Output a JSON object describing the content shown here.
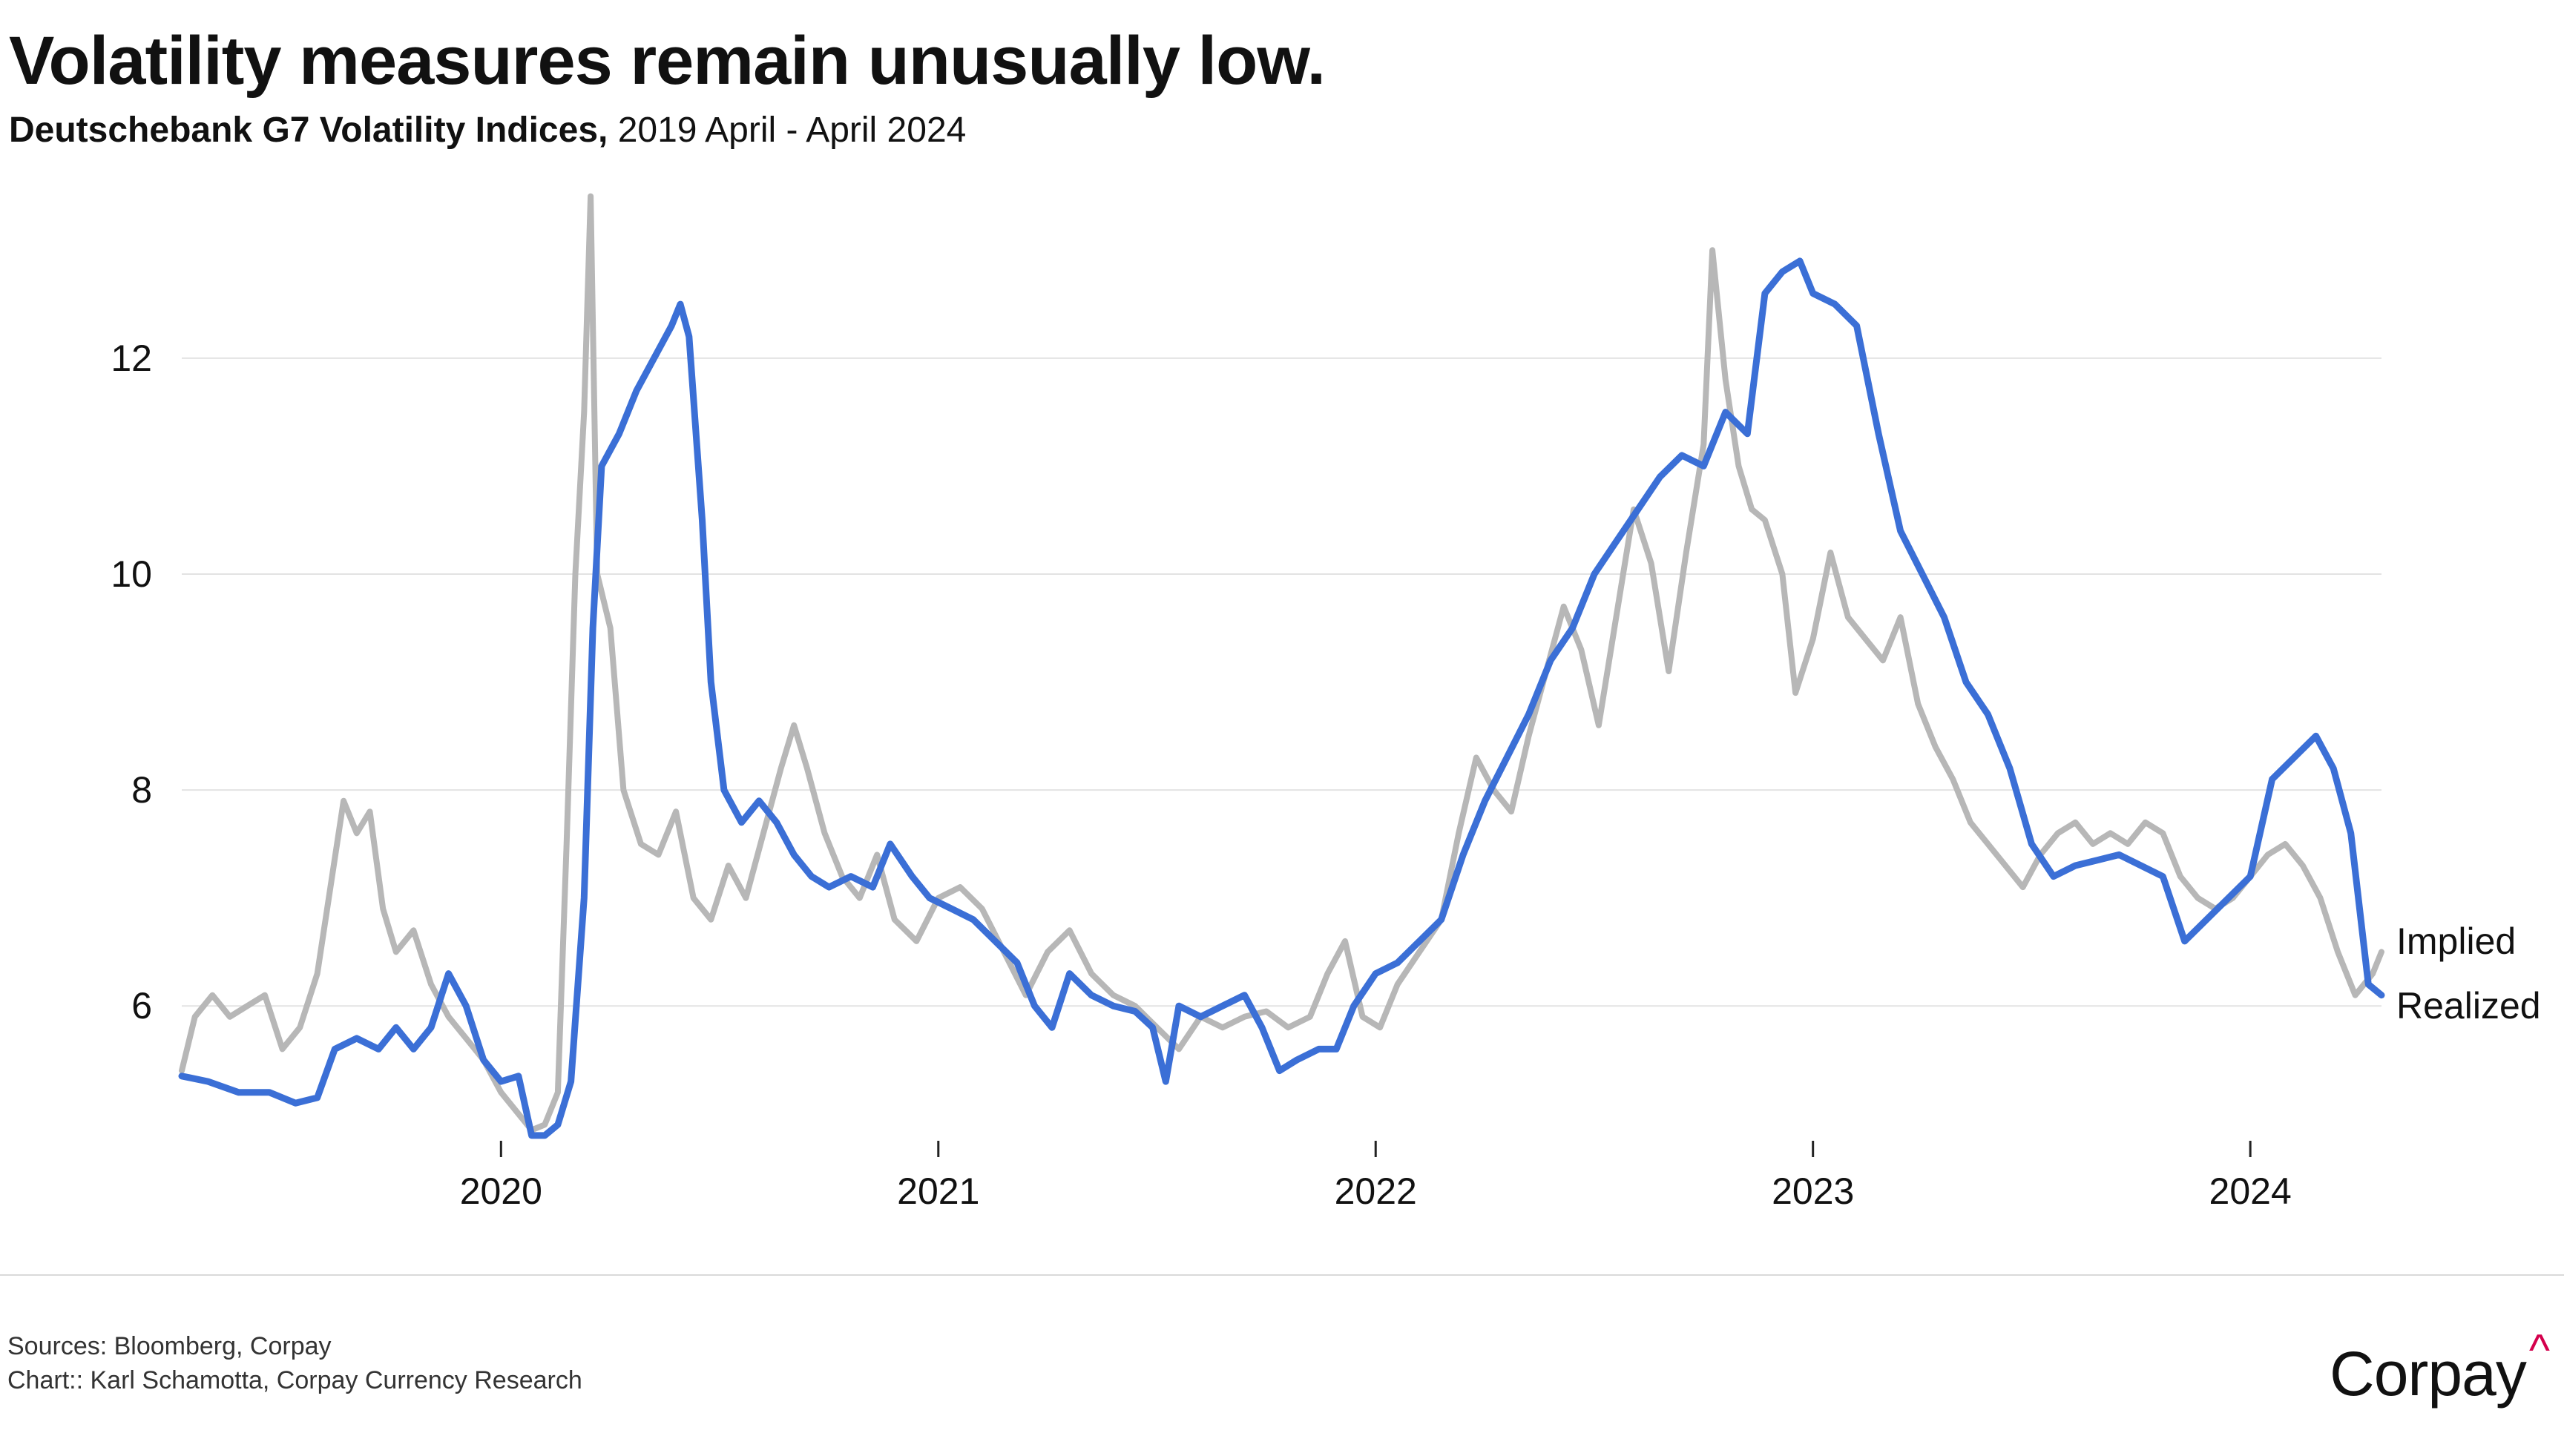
{
  "header": {
    "title": "Volatility measures remain unusually low.",
    "subtitle_bold": "Deutschebank G7 Volatility Indices,",
    "subtitle_rest": " 2019 April - April 2024"
  },
  "footer": {
    "sources": "Sources: Bloomberg, Corpay",
    "credit": "Chart:: Karl Schamotta, Corpay Currency Research",
    "logo_text": "Corpay",
    "logo_mark": "^"
  },
  "colors": {
    "implied": "#3b6fd6",
    "realized": "#b7b7b7",
    "grid": "#e3e3e3",
    "text": "#111111",
    "logo_accent": "#d4004c"
  },
  "chart_data": {
    "type": "line",
    "title": "Volatility measures remain unusually low.",
    "subtitle": "Deutschebank G7 Volatility Indices, 2019 April - April 2024",
    "xlabel": "",
    "ylabel": "",
    "x_ticks": [
      "2020",
      "2021",
      "2022",
      "2023",
      "2024"
    ],
    "y_ticks": [
      6,
      8,
      10,
      12
    ],
    "xlim": [
      2019.27,
      2024.3
    ],
    "ylim": [
      4.6,
      13.6
    ],
    "grid": "horizontal",
    "legend": "end-of-line labels",
    "series": [
      {
        "name": "Implied",
        "color": "#3b6fd6",
        "points": [
          [
            2019.27,
            5.35
          ],
          [
            2019.33,
            5.3
          ],
          [
            2019.4,
            5.2
          ],
          [
            2019.47,
            5.2
          ],
          [
            2019.53,
            5.1
          ],
          [
            2019.58,
            5.15
          ],
          [
            2019.62,
            5.6
          ],
          [
            2019.67,
            5.7
          ],
          [
            2019.72,
            5.6
          ],
          [
            2019.76,
            5.8
          ],
          [
            2019.8,
            5.6
          ],
          [
            2019.84,
            5.8
          ],
          [
            2019.88,
            6.3
          ],
          [
            2019.92,
            6.0
          ],
          [
            2019.96,
            5.5
          ],
          [
            2020.0,
            5.3
          ],
          [
            2020.04,
            5.35
          ],
          [
            2020.07,
            4.8
          ],
          [
            2020.1,
            4.8
          ],
          [
            2020.13,
            4.9
          ],
          [
            2020.16,
            5.3
          ],
          [
            2020.19,
            7.0
          ],
          [
            2020.21,
            9.5
          ],
          [
            2020.23,
            11.0
          ],
          [
            2020.27,
            11.3
          ],
          [
            2020.31,
            11.7
          ],
          [
            2020.35,
            12.0
          ],
          [
            2020.39,
            12.3
          ],
          [
            2020.41,
            12.5
          ],
          [
            2020.43,
            12.2
          ],
          [
            2020.46,
            10.5
          ],
          [
            2020.48,
            9.0
          ],
          [
            2020.51,
            8.0
          ],
          [
            2020.55,
            7.7
          ],
          [
            2020.59,
            7.9
          ],
          [
            2020.63,
            7.7
          ],
          [
            2020.67,
            7.4
          ],
          [
            2020.71,
            7.2
          ],
          [
            2020.75,
            7.1
          ],
          [
            2020.8,
            7.2
          ],
          [
            2020.85,
            7.1
          ],
          [
            2020.89,
            7.5
          ],
          [
            2020.94,
            7.2
          ],
          [
            2020.98,
            7.0
          ],
          [
            2021.03,
            6.9
          ],
          [
            2021.08,
            6.8
          ],
          [
            2021.13,
            6.6
          ],
          [
            2021.18,
            6.4
          ],
          [
            2021.22,
            6.0
          ],
          [
            2021.26,
            5.8
          ],
          [
            2021.3,
            6.3
          ],
          [
            2021.35,
            6.1
          ],
          [
            2021.4,
            6.0
          ],
          [
            2021.45,
            5.95
          ],
          [
            2021.49,
            5.8
          ],
          [
            2021.52,
            5.3
          ],
          [
            2021.55,
            6.0
          ],
          [
            2021.6,
            5.9
          ],
          [
            2021.65,
            6.0
          ],
          [
            2021.7,
            6.1
          ],
          [
            2021.74,
            5.8
          ],
          [
            2021.78,
            5.4
          ],
          [
            2021.82,
            5.5
          ],
          [
            2021.87,
            5.6
          ],
          [
            2021.91,
            5.6
          ],
          [
            2021.95,
            6.0
          ],
          [
            2022.0,
            6.3
          ],
          [
            2022.05,
            6.4
          ],
          [
            2022.1,
            6.6
          ],
          [
            2022.15,
            6.8
          ],
          [
            2022.2,
            7.4
          ],
          [
            2022.25,
            7.9
          ],
          [
            2022.3,
            8.3
          ],
          [
            2022.35,
            8.7
          ],
          [
            2022.4,
            9.2
          ],
          [
            2022.45,
            9.5
          ],
          [
            2022.5,
            10.0
          ],
          [
            2022.55,
            10.3
          ],
          [
            2022.6,
            10.6
          ],
          [
            2022.65,
            10.9
          ],
          [
            2022.7,
            11.1
          ],
          [
            2022.75,
            11.0
          ],
          [
            2022.8,
            11.5
          ],
          [
            2022.85,
            11.3
          ],
          [
            2022.89,
            12.6
          ],
          [
            2022.93,
            12.8
          ],
          [
            2022.97,
            12.9
          ],
          [
            2023.0,
            12.6
          ],
          [
            2023.05,
            12.5
          ],
          [
            2023.1,
            12.3
          ],
          [
            2023.15,
            11.3
          ],
          [
            2023.2,
            10.4
          ],
          [
            2023.25,
            10.0
          ],
          [
            2023.3,
            9.6
          ],
          [
            2023.35,
            9.0
          ],
          [
            2023.4,
            8.7
          ],
          [
            2023.45,
            8.2
          ],
          [
            2023.5,
            7.5
          ],
          [
            2023.55,
            7.2
          ],
          [
            2023.6,
            7.3
          ],
          [
            2023.65,
            7.35
          ],
          [
            2023.7,
            7.4
          ],
          [
            2023.75,
            7.3
          ],
          [
            2023.8,
            7.2
          ],
          [
            2023.85,
            6.6
          ],
          [
            2023.9,
            6.8
          ],
          [
            2023.95,
            7.0
          ],
          [
            2024.0,
            7.2
          ],
          [
            2024.05,
            8.1
          ],
          [
            2024.1,
            8.3
          ],
          [
            2024.15,
            8.5
          ],
          [
            2024.19,
            8.2
          ],
          [
            2024.23,
            7.6
          ],
          [
            2024.27,
            6.2
          ],
          [
            2024.3,
            6.1
          ]
        ]
      },
      {
        "name": "Realized",
        "color": "#b7b7b7",
        "points": [
          [
            2019.27,
            5.4
          ],
          [
            2019.3,
            5.9
          ],
          [
            2019.34,
            6.1
          ],
          [
            2019.38,
            5.9
          ],
          [
            2019.42,
            6.0
          ],
          [
            2019.46,
            6.1
          ],
          [
            2019.5,
            5.6
          ],
          [
            2019.54,
            5.8
          ],
          [
            2019.58,
            6.3
          ],
          [
            2019.61,
            7.1
          ],
          [
            2019.64,
            7.9
          ],
          [
            2019.67,
            7.6
          ],
          [
            2019.7,
            7.8
          ],
          [
            2019.73,
            6.9
          ],
          [
            2019.76,
            6.5
          ],
          [
            2019.8,
            6.7
          ],
          [
            2019.84,
            6.2
          ],
          [
            2019.88,
            5.9
          ],
          [
            2019.92,
            5.7
          ],
          [
            2019.96,
            5.5
          ],
          [
            2020.0,
            5.2
          ],
          [
            2020.04,
            5.0
          ],
          [
            2020.07,
            4.85
          ],
          [
            2020.1,
            4.9
          ],
          [
            2020.13,
            5.2
          ],
          [
            2020.15,
            7.5
          ],
          [
            2020.17,
            10.0
          ],
          [
            2020.19,
            11.5
          ],
          [
            2020.205,
            13.5
          ],
          [
            2020.22,
            10.0
          ],
          [
            2020.25,
            9.5
          ],
          [
            2020.28,
            8.0
          ],
          [
            2020.32,
            7.5
          ],
          [
            2020.36,
            7.4
          ],
          [
            2020.4,
            7.8
          ],
          [
            2020.44,
            7.0
          ],
          [
            2020.48,
            6.8
          ],
          [
            2020.52,
            7.3
          ],
          [
            2020.56,
            7.0
          ],
          [
            2020.6,
            7.6
          ],
          [
            2020.64,
            8.2
          ],
          [
            2020.67,
            8.6
          ],
          [
            2020.7,
            8.2
          ],
          [
            2020.74,
            7.6
          ],
          [
            2020.78,
            7.2
          ],
          [
            2020.82,
            7.0
          ],
          [
            2020.86,
            7.4
          ],
          [
            2020.9,
            6.8
          ],
          [
            2020.95,
            6.6
          ],
          [
            2021.0,
            7.0
          ],
          [
            2021.05,
            7.1
          ],
          [
            2021.1,
            6.9
          ],
          [
            2021.15,
            6.5
          ],
          [
            2021.2,
            6.1
          ],
          [
            2021.25,
            6.5
          ],
          [
            2021.3,
            6.7
          ],
          [
            2021.35,
            6.3
          ],
          [
            2021.4,
            6.1
          ],
          [
            2021.45,
            6.0
          ],
          [
            2021.5,
            5.8
          ],
          [
            2021.55,
            5.6
          ],
          [
            2021.6,
            5.9
          ],
          [
            2021.65,
            5.8
          ],
          [
            2021.7,
            5.9
          ],
          [
            2021.75,
            5.95
          ],
          [
            2021.8,
            5.8
          ],
          [
            2021.85,
            5.9
          ],
          [
            2021.89,
            6.3
          ],
          [
            2021.93,
            6.6
          ],
          [
            2021.97,
            5.9
          ],
          [
            2022.01,
            5.8
          ],
          [
            2022.05,
            6.2
          ],
          [
            2022.1,
            6.5
          ],
          [
            2022.15,
            6.8
          ],
          [
            2022.19,
            7.6
          ],
          [
            2022.23,
            8.3
          ],
          [
            2022.27,
            8.0
          ],
          [
            2022.31,
            7.8
          ],
          [
            2022.35,
            8.5
          ],
          [
            2022.39,
            9.1
          ],
          [
            2022.43,
            9.7
          ],
          [
            2022.47,
            9.3
          ],
          [
            2022.51,
            8.6
          ],
          [
            2022.55,
            9.6
          ],
          [
            2022.59,
            10.6
          ],
          [
            2022.63,
            10.1
          ],
          [
            2022.67,
            9.1
          ],
          [
            2022.71,
            10.2
          ],
          [
            2022.75,
            11.2
          ],
          [
            2022.77,
            13.0
          ],
          [
            2022.8,
            11.8
          ],
          [
            2022.83,
            11.0
          ],
          [
            2022.86,
            10.6
          ],
          [
            2022.89,
            10.5
          ],
          [
            2022.93,
            10.0
          ],
          [
            2022.96,
            8.9
          ],
          [
            2023.0,
            9.4
          ],
          [
            2023.04,
            10.2
          ],
          [
            2023.08,
            9.6
          ],
          [
            2023.12,
            9.4
          ],
          [
            2023.16,
            9.2
          ],
          [
            2023.2,
            9.6
          ],
          [
            2023.24,
            8.8
          ],
          [
            2023.28,
            8.4
          ],
          [
            2023.32,
            8.1
          ],
          [
            2023.36,
            7.7
          ],
          [
            2023.4,
            7.5
          ],
          [
            2023.44,
            7.3
          ],
          [
            2023.48,
            7.1
          ],
          [
            2023.52,
            7.4
          ],
          [
            2023.56,
            7.6
          ],
          [
            2023.6,
            7.7
          ],
          [
            2023.64,
            7.5
          ],
          [
            2023.68,
            7.6
          ],
          [
            2023.72,
            7.5
          ],
          [
            2023.76,
            7.7
          ],
          [
            2023.8,
            7.6
          ],
          [
            2023.84,
            7.2
          ],
          [
            2023.88,
            7.0
          ],
          [
            2023.92,
            6.9
          ],
          [
            2023.96,
            7.0
          ],
          [
            2024.0,
            7.2
          ],
          [
            2024.04,
            7.4
          ],
          [
            2024.08,
            7.5
          ],
          [
            2024.12,
            7.3
          ],
          [
            2024.16,
            7.0
          ],
          [
            2024.2,
            6.5
          ],
          [
            2024.24,
            6.1
          ],
          [
            2024.28,
            6.3
          ],
          [
            2024.3,
            6.5
          ]
        ]
      }
    ]
  }
}
